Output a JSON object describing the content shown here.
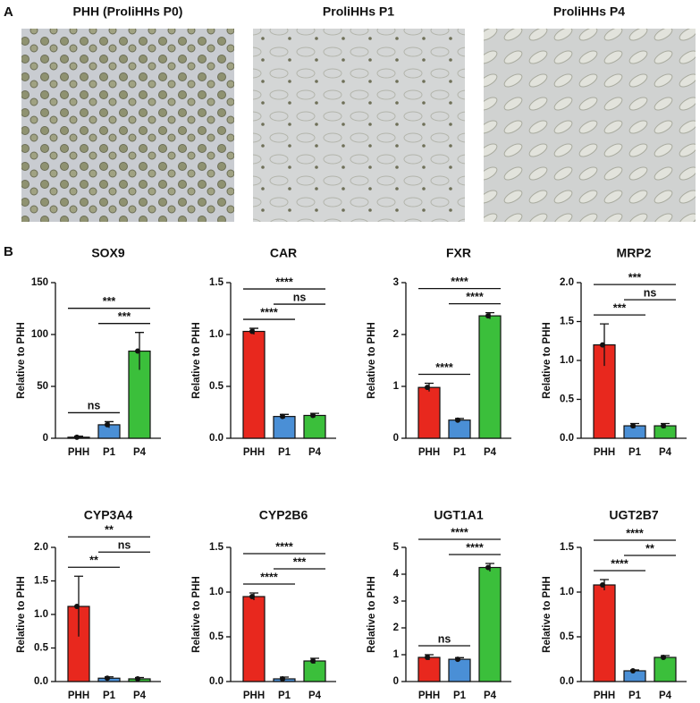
{
  "panel_labels": [
    "A",
    "B"
  ],
  "micrographs": [
    {
      "title": "PHH (ProliHHs P0)"
    },
    {
      "title": "ProliHHs P1"
    },
    {
      "title": "ProliHHs P4"
    }
  ],
  "chart_data": [
    {
      "type": "bar",
      "title": "SOX9",
      "ylabel": "Relative to PHH",
      "categories": [
        "PHH",
        "P1",
        "P4"
      ],
      "values": [
        1,
        13,
        84
      ],
      "errors": [
        1,
        3,
        18
      ],
      "colors": [
        "#e8281e",
        "#4a8fd6",
        "#3bbf3b"
      ],
      "ylim": [
        0,
        150
      ],
      "yticks": [
        0,
        50,
        100,
        150
      ],
      "annotations": [
        {
          "text": "ns",
          "from": 0,
          "to": 1
        },
        {
          "text": "***",
          "from": 1,
          "to": 2
        },
        {
          "text": "***",
          "from": 0,
          "to": 2
        }
      ]
    },
    {
      "type": "bar",
      "title": "CAR",
      "ylabel": "Relative to PHH",
      "categories": [
        "PHH",
        "P1",
        "P4"
      ],
      "values": [
        1.03,
        0.21,
        0.22
      ],
      "errors": [
        0.03,
        0.02,
        0.02
      ],
      "colors": [
        "#e8281e",
        "#4a8fd6",
        "#3bbf3b"
      ],
      "ylim": [
        0,
        1.5
      ],
      "yticks": [
        {
          "value": 0,
          "label": "0.0"
        },
        0.5,
        {
          "value": 1,
          "label": "1.0"
        },
        1.5
      ],
      "annotations": [
        {
          "text": "****",
          "from": 0,
          "to": 1
        },
        {
          "text": "ns",
          "from": 1,
          "to": 2
        },
        {
          "text": "****",
          "from": 0,
          "to": 2
        }
      ]
    },
    {
      "type": "bar",
      "title": "FXR",
      "ylabel": "Relative to PHH",
      "categories": [
        "PHH",
        "P1",
        "P4"
      ],
      "values": [
        0.98,
        0.35,
        2.36
      ],
      "errors": [
        0.08,
        0.03,
        0.06
      ],
      "colors": [
        "#e8281e",
        "#4a8fd6",
        "#3bbf3b"
      ],
      "ylim": [
        0,
        3
      ],
      "yticks": [
        0,
        1,
        2,
        3
      ],
      "annotations": [
        {
          "text": "****",
          "from": 0,
          "to": 1
        },
        {
          "text": "****",
          "from": 1,
          "to": 2
        },
        {
          "text": "****",
          "from": 0,
          "to": 2
        }
      ]
    },
    {
      "type": "bar",
      "title": "MRP2",
      "ylabel": "Relative to PHH",
      "categories": [
        "PHH",
        "P1",
        "P4"
      ],
      "values": [
        1.2,
        0.16,
        0.16
      ],
      "errors": [
        0.27,
        0.03,
        0.03
      ],
      "colors": [
        "#e8281e",
        "#4a8fd6",
        "#3bbf3b"
      ],
      "ylim": [
        0,
        2
      ],
      "yticks": [
        {
          "value": 0,
          "label": "0.0"
        },
        0.5,
        {
          "value": 1,
          "label": "1.0"
        },
        1.5,
        {
          "value": 2,
          "label": "2.0"
        }
      ],
      "annotations": [
        {
          "text": "***",
          "from": 0,
          "to": 1
        },
        {
          "text": "ns",
          "from": 1,
          "to": 2
        },
        {
          "text": "***",
          "from": 0,
          "to": 2
        }
      ]
    },
    {
      "type": "bar",
      "title": "CYP3A4",
      "ylabel": "Relative to PHH",
      "categories": [
        "PHH",
        "P1",
        "P4"
      ],
      "values": [
        1.12,
        0.05,
        0.04
      ],
      "errors": [
        0.45,
        0.02,
        0.02
      ],
      "colors": [
        "#e8281e",
        "#4a8fd6",
        "#3bbf3b"
      ],
      "ylim": [
        0,
        2
      ],
      "yticks": [
        {
          "value": 0,
          "label": "0.0"
        },
        0.5,
        {
          "value": 1,
          "label": "1.0"
        },
        1.5,
        {
          "value": 2,
          "label": "2.0"
        }
      ],
      "annotations": [
        {
          "text": "**",
          "from": 0,
          "to": 1
        },
        {
          "text": "ns",
          "from": 1,
          "to": 2
        },
        {
          "text": "**",
          "from": 0,
          "to": 2
        }
      ]
    },
    {
      "type": "bar",
      "title": "CYP2B6",
      "ylabel": "Relative to PHH",
      "categories": [
        "PHH",
        "P1",
        "P4"
      ],
      "values": [
        0.95,
        0.03,
        0.23
      ],
      "errors": [
        0.04,
        0.02,
        0.03
      ],
      "colors": [
        "#e8281e",
        "#4a8fd6",
        "#3bbf3b"
      ],
      "ylim": [
        0,
        1.5
      ],
      "yticks": [
        {
          "value": 0,
          "label": "0.0"
        },
        0.5,
        {
          "value": 1,
          "label": "1.0"
        },
        1.5
      ],
      "annotations": [
        {
          "text": "****",
          "from": 0,
          "to": 1
        },
        {
          "text": "***",
          "from": 1,
          "to": 2
        },
        {
          "text": "****",
          "from": 0,
          "to": 2
        }
      ]
    },
    {
      "type": "bar",
      "title": "UGT1A1",
      "ylabel": "Relative to PHH",
      "categories": [
        "PHH",
        "P1",
        "P4"
      ],
      "values": [
        0.9,
        0.83,
        4.25
      ],
      "errors": [
        0.1,
        0.06,
        0.15
      ],
      "colors": [
        "#e8281e",
        "#4a8fd6",
        "#3bbf3b"
      ],
      "ylim": [
        0,
        5
      ],
      "yticks": [
        0,
        1,
        2,
        3,
        4,
        5
      ],
      "annotations": [
        {
          "text": "ns",
          "from": 0,
          "to": 1
        },
        {
          "text": "****",
          "from": 1,
          "to": 2
        },
        {
          "text": "****",
          "from": 0,
          "to": 2
        }
      ]
    },
    {
      "type": "bar",
      "title": "UGT2B7",
      "ylabel": "Relative to PHH",
      "categories": [
        "PHH",
        "P1",
        "P4"
      ],
      "values": [
        1.08,
        0.12,
        0.27
      ],
      "errors": [
        0.06,
        0.01,
        0.02
      ],
      "colors": [
        "#e8281e",
        "#4a8fd6",
        "#3bbf3b"
      ],
      "ylim": [
        0,
        1.5
      ],
      "yticks": [
        {
          "value": 0,
          "label": "0.0"
        },
        0.5,
        {
          "value": 1,
          "label": "1.0"
        },
        1.5
      ],
      "annotations": [
        {
          "text": "****",
          "from": 0,
          "to": 1
        },
        {
          "text": "**",
          "from": 1,
          "to": 2
        },
        {
          "text": "****",
          "from": 0,
          "to": 2
        }
      ]
    }
  ]
}
